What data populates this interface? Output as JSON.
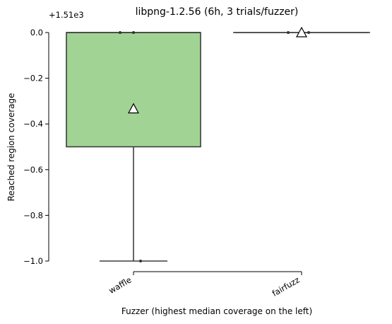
{
  "chart_data": {
    "type": "box",
    "title": "libpng-1.2.56 (6h, 3 trials/fuzzer)",
    "xlabel": "Fuzzer (highest median coverage on the left)",
    "ylabel": "Reached region coverage",
    "offset_label": "+1.51e3",
    "ylim": [
      -1.0,
      0.0
    ],
    "yticks": [
      0.0,
      -0.2,
      -0.4,
      -0.6,
      -0.8,
      -1.0
    ],
    "ytick_labels": [
      "0.0",
      "−0.2",
      "−0.4",
      "−0.6",
      "−0.8",
      "−1.0"
    ],
    "grid": false,
    "categories": [
      "waffle",
      "fairfuzz"
    ],
    "series": [
      {
        "category": "waffle",
        "color": "#a1d494",
        "box": {
          "q1": -0.5,
          "median": 0.0,
          "q3": 0.0,
          "whisker_low": -1.0,
          "whisker_high": 0.0
        },
        "mean": -0.3333,
        "points": [
          0.0,
          0.0,
          -1.0
        ]
      },
      {
        "category": "fairfuzz",
        "color": "#a1d494",
        "box": {
          "q1": 0.0,
          "median": 0.0,
          "q3": 0.0,
          "whisker_low": 0.0,
          "whisker_high": 0.0
        },
        "mean": 0.0,
        "points": [
          0.0,
          0.0,
          0.0
        ]
      }
    ]
  }
}
